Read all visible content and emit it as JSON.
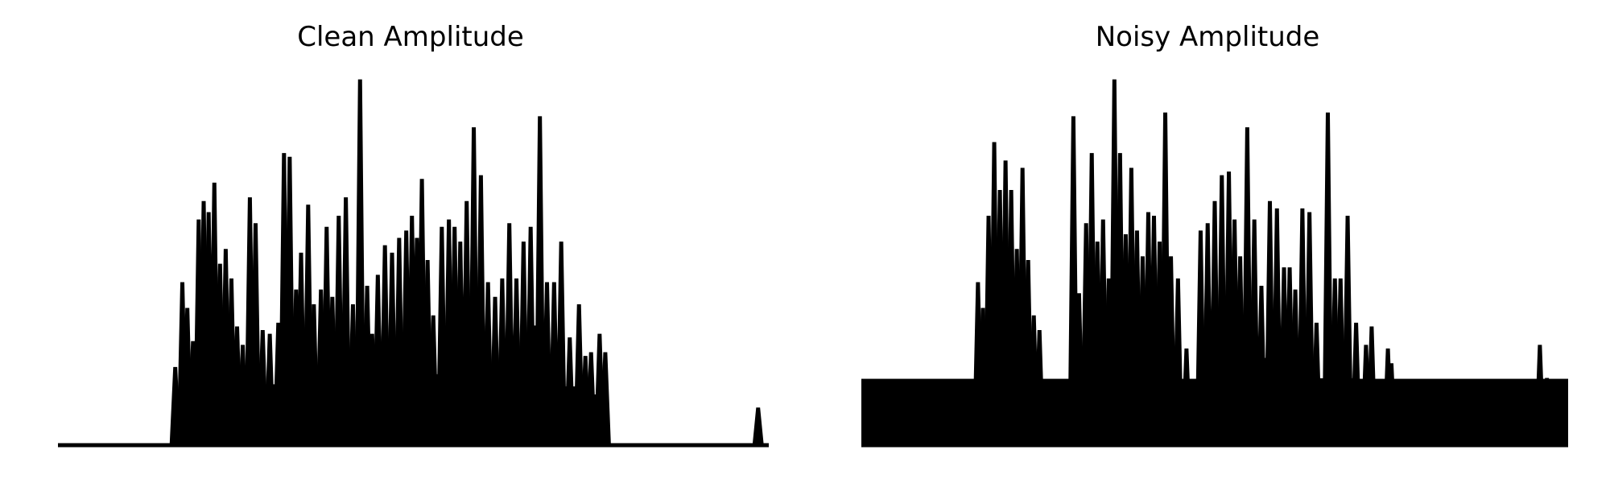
{
  "chart_data": [
    {
      "type": "line",
      "title": "Clean Amplitude",
      "xlabel": "",
      "ylabel": "",
      "axes_visible": false,
      "grid": false,
      "color": "#000000",
      "ylim": [
        0,
        1
      ],
      "x_range": [
        0,
        1
      ],
      "peaks": [
        [
          0.165,
          0.21
        ],
        [
          0.175,
          0.44
        ],
        [
          0.182,
          0.37
        ],
        [
          0.19,
          0.28
        ],
        [
          0.198,
          0.61
        ],
        [
          0.205,
          0.66
        ],
        [
          0.212,
          0.63
        ],
        [
          0.22,
          0.71
        ],
        [
          0.228,
          0.49
        ],
        [
          0.236,
          0.53
        ],
        [
          0.244,
          0.45
        ],
        [
          0.252,
          0.32
        ],
        [
          0.26,
          0.27
        ],
        [
          0.27,
          0.67
        ],
        [
          0.278,
          0.6
        ],
        [
          0.288,
          0.31
        ],
        [
          0.298,
          0.3
        ],
        [
          0.31,
          0.33
        ],
        [
          0.318,
          0.79
        ],
        [
          0.326,
          0.78
        ],
        [
          0.335,
          0.42
        ],
        [
          0.342,
          0.52
        ],
        [
          0.352,
          0.65
        ],
        [
          0.36,
          0.38
        ],
        [
          0.37,
          0.42
        ],
        [
          0.378,
          0.59
        ],
        [
          0.386,
          0.4
        ],
        [
          0.395,
          0.62
        ],
        [
          0.405,
          0.67
        ],
        [
          0.415,
          0.38
        ],
        [
          0.425,
          0.99
        ],
        [
          0.435,
          0.43
        ],
        [
          0.442,
          0.3
        ],
        [
          0.45,
          0.46
        ],
        [
          0.46,
          0.54
        ],
        [
          0.47,
          0.52
        ],
        [
          0.48,
          0.56
        ],
        [
          0.49,
          0.58
        ],
        [
          0.498,
          0.62
        ],
        [
          0.505,
          0.56
        ],
        [
          0.512,
          0.72
        ],
        [
          0.52,
          0.5
        ],
        [
          0.528,
          0.35
        ],
        [
          0.54,
          0.59
        ],
        [
          0.55,
          0.61
        ],
        [
          0.558,
          0.59
        ],
        [
          0.566,
          0.55
        ],
        [
          0.575,
          0.66
        ],
        [
          0.585,
          0.86
        ],
        [
          0.595,
          0.73
        ],
        [
          0.605,
          0.44
        ],
        [
          0.615,
          0.4
        ],
        [
          0.625,
          0.45
        ],
        [
          0.635,
          0.6
        ],
        [
          0.645,
          0.45
        ],
        [
          0.655,
          0.55
        ],
        [
          0.665,
          0.59
        ],
        [
          0.678,
          0.89
        ],
        [
          0.688,
          0.44
        ],
        [
          0.698,
          0.44
        ],
        [
          0.708,
          0.55
        ],
        [
          0.72,
          0.29
        ],
        [
          0.733,
          0.38
        ],
        [
          0.742,
          0.24
        ],
        [
          0.75,
          0.25
        ],
        [
          0.762,
          0.3
        ],
        [
          0.77,
          0.25
        ],
        [
          0.985,
          0.1
        ]
      ]
    },
    {
      "type": "line",
      "title": "Noisy Amplitude",
      "xlabel": "",
      "ylabel": "",
      "axes_visible": false,
      "grid": false,
      "color": "#000000",
      "ylim": [
        0,
        1
      ],
      "x_range": [
        0,
        1
      ],
      "noise_floor": 0.18,
      "peaks": [
        [
          0.165,
          0.44
        ],
        [
          0.172,
          0.37
        ],
        [
          0.18,
          0.62
        ],
        [
          0.188,
          0.82
        ],
        [
          0.196,
          0.69
        ],
        [
          0.204,
          0.77
        ],
        [
          0.212,
          0.69
        ],
        [
          0.22,
          0.53
        ],
        [
          0.228,
          0.75
        ],
        [
          0.236,
          0.5
        ],
        [
          0.244,
          0.35
        ],
        [
          0.252,
          0.31
        ],
        [
          0.3,
          0.89
        ],
        [
          0.308,
          0.41
        ],
        [
          0.318,
          0.6
        ],
        [
          0.326,
          0.79
        ],
        [
          0.334,
          0.55
        ],
        [
          0.342,
          0.61
        ],
        [
          0.35,
          0.45
        ],
        [
          0.358,
          0.99
        ],
        [
          0.366,
          0.79
        ],
        [
          0.374,
          0.57
        ],
        [
          0.382,
          0.75
        ],
        [
          0.39,
          0.58
        ],
        [
          0.398,
          0.51
        ],
        [
          0.406,
          0.63
        ],
        [
          0.414,
          0.62
        ],
        [
          0.422,
          0.55
        ],
        [
          0.43,
          0.9
        ],
        [
          0.438,
          0.51
        ],
        [
          0.448,
          0.45
        ],
        [
          0.46,
          0.26
        ],
        [
          0.48,
          0.58
        ],
        [
          0.49,
          0.6
        ],
        [
          0.5,
          0.66
        ],
        [
          0.51,
          0.73
        ],
        [
          0.52,
          0.74
        ],
        [
          0.528,
          0.61
        ],
        [
          0.536,
          0.51
        ],
        [
          0.546,
          0.86
        ],
        [
          0.556,
          0.61
        ],
        [
          0.566,
          0.43
        ],
        [
          0.578,
          0.66
        ],
        [
          0.588,
          0.64
        ],
        [
          0.598,
          0.48
        ],
        [
          0.606,
          0.48
        ],
        [
          0.614,
          0.42
        ],
        [
          0.624,
          0.64
        ],
        [
          0.634,
          0.63
        ],
        [
          0.644,
          0.33
        ],
        [
          0.66,
          0.9
        ],
        [
          0.67,
          0.45
        ],
        [
          0.678,
          0.45
        ],
        [
          0.688,
          0.62
        ],
        [
          0.7,
          0.33
        ],
        [
          0.714,
          0.27
        ],
        [
          0.722,
          0.32
        ],
        [
          0.745,
          0.26
        ],
        [
          0.75,
          0.22
        ],
        [
          0.96,
          0.27
        ],
        [
          0.97,
          0.18
        ]
      ]
    }
  ]
}
